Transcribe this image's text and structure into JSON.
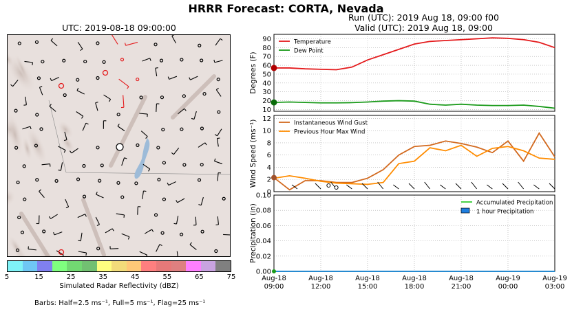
{
  "title": "HRRR Forecast: CORTA, Nevada",
  "map": {
    "title": "UTC: 2019-08-18 09:00:00",
    "colorbar": {
      "colors": [
        "#7ff3f7",
        "#6fc7f4",
        "#8080ef",
        "#7fff7f",
        "#72d872",
        "#72c072",
        "#fefe80",
        "#f2dc7a",
        "#fec878",
        "#fe7f7f",
        "#e77979",
        "#de8080",
        "#fe7ffe",
        "#c8a3e0",
        "#808080"
      ],
      "ticks": [
        "5",
        "15",
        "25",
        "35",
        "45",
        "55",
        "65",
        "75"
      ],
      "label": "Simulated Radar Reflectivity (dBZ)"
    },
    "barb_note": "Barbs: Half=2.5 ms⁻¹, Full=5 ms⁻¹, Flag=25 ms⁻¹"
  },
  "run": {
    "line1": "Run (UTC): 2019 Aug 18, 09:00 f00",
    "line2": "Valid (UTC): 2019 Aug 18, 09:00"
  },
  "chart_data": [
    {
      "type": "line",
      "ylabel": "Degrees (F)",
      "ylim": [
        8,
        95
      ],
      "yticks": [
        10,
        20,
        30,
        40,
        50,
        60,
        70,
        80,
        90
      ],
      "grid": true,
      "legend": "top-left",
      "x": [
        0,
        1,
        2,
        3,
        4,
        5,
        6,
        7,
        8,
        9,
        10,
        11,
        12,
        13,
        14,
        15,
        16,
        17,
        18
      ],
      "series": [
        {
          "name": "Temperature",
          "color": "#e41a1c",
          "values": [
            57,
            57,
            56,
            55.5,
            55,
            58,
            66,
            72,
            78,
            84,
            87,
            88,
            89,
            90,
            91,
            90.5,
            89,
            86,
            80
          ]
        },
        {
          "name": "Dew Point",
          "color": "#1a9a1a",
          "values": [
            18,
            18.5,
            18,
            17.5,
            17.5,
            17.8,
            18.5,
            19.5,
            20,
            19.5,
            16,
            15,
            16,
            15,
            14.5,
            14.5,
            15,
            13.5,
            11.5
          ]
        }
      ]
    },
    {
      "type": "line",
      "ylabel": "Wind Speed (ms⁻¹)",
      "ylim": [
        0,
        12.5
      ],
      "yticks": [
        0,
        2,
        4,
        6,
        8,
        10,
        12
      ],
      "grid": true,
      "legend": "top-left",
      "x": [
        0,
        1,
        2,
        3,
        4,
        5,
        6,
        7,
        8,
        9,
        10,
        11,
        12,
        13,
        14,
        15,
        16,
        17,
        18
      ],
      "series": [
        {
          "name": "Instantaneous Wind Gust",
          "color": "#d2691e",
          "values": [
            2.3,
            0.3,
            1.8,
            1.8,
            1.5,
            1.5,
            2.2,
            3.6,
            6,
            7.4,
            7.6,
            8.3,
            7.9,
            7.3,
            6.4,
            8.3,
            5,
            9.6,
            5.7
          ]
        },
        {
          "name": "Previous Hour Max Wind",
          "color": "#ff8c00",
          "values": [
            2.2,
            2.6,
            2.2,
            1.7,
            1.4,
            1.3,
            1.2,
            1.5,
            4.6,
            5,
            7.2,
            6.7,
            7.6,
            5.8,
            7.1,
            7.4,
            6.7,
            5.5,
            5.3
          ]
        }
      ]
    },
    {
      "type": "area",
      "ylabel": "Precipitation (in)",
      "ylim": [
        0,
        0.1
      ],
      "yticks": [
        "0.00",
        "0.02",
        "0.04",
        "0.06",
        "0.08",
        "0.10"
      ],
      "grid": true,
      "legend": "top-right",
      "x": [
        0,
        1,
        2,
        3,
        4,
        5,
        6,
        7,
        8,
        9,
        10,
        11,
        12,
        13,
        14,
        15,
        16,
        17,
        18
      ],
      "series": [
        {
          "name": "Accumulated Precipitation",
          "color": "#33cc33",
          "values": [
            0,
            0,
            0,
            0,
            0,
            0,
            0,
            0,
            0,
            0,
            0,
            0,
            0,
            0,
            0,
            0,
            0,
            0,
            0
          ]
        },
        {
          "name": "1 hour Precipitation",
          "color": "#1e7fe0",
          "values": [
            0,
            0,
            0,
            0,
            0,
            0,
            0,
            0,
            0,
            0,
            0,
            0,
            0,
            0,
            0,
            0,
            0,
            0,
            0
          ]
        }
      ]
    }
  ],
  "x_ticklabels": [
    [
      "Aug-18",
      "09:00"
    ],
    [
      "Aug-18",
      "12:00"
    ],
    [
      "Aug-18",
      "15:00"
    ],
    [
      "Aug-18",
      "18:00"
    ],
    [
      "Aug-18",
      "21:00"
    ],
    [
      "Aug-19",
      "00:00"
    ],
    [
      "Aug-19",
      "03:00"
    ]
  ]
}
